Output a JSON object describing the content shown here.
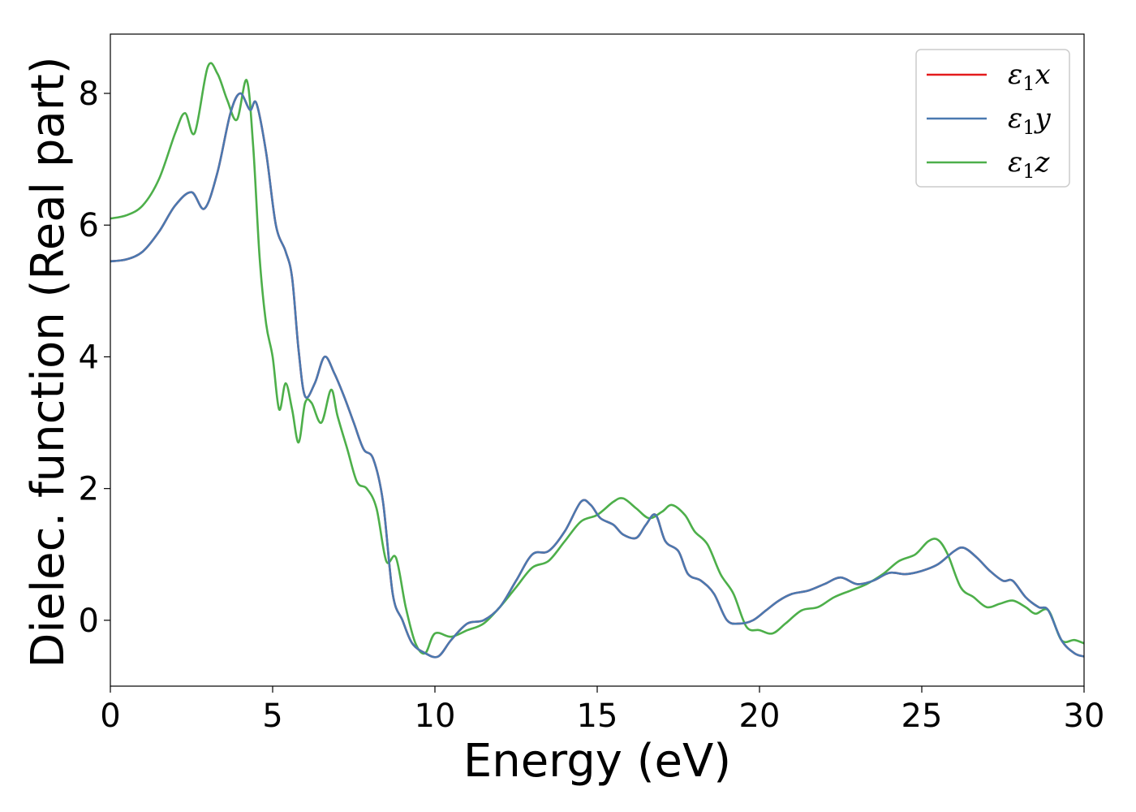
{
  "chart_data": {
    "type": "line",
    "title": "",
    "xlabel": "Energy (eV)",
    "ylabel": "Dielec. function (Real part)",
    "xlim": [
      0,
      30
    ],
    "ylim": [
      -1.0,
      8.9
    ],
    "xticks": [
      0,
      5,
      10,
      15,
      20,
      25,
      30
    ],
    "yticks": [
      0,
      2,
      4,
      6,
      8
    ],
    "grid": false,
    "legend": {
      "position": "top-right"
    },
    "series": [
      {
        "name": "ε1x",
        "color": "#e41a1c",
        "x": [
          0,
          0.5,
          1,
          1.5,
          2,
          2.5,
          2.9,
          3.3,
          3.7,
          4.0,
          4.3,
          4.5,
          4.8,
          5.1,
          5.4,
          5.6,
          5.8,
          6.0,
          6.3,
          6.6,
          6.9,
          7.2,
          7.5,
          7.8,
          8.1,
          8.4,
          8.7,
          9.0,
          9.3,
          9.7,
          10.1,
          10.5,
          11.0,
          11.5,
          12.0,
          12.5,
          13.0,
          13.5,
          14.0,
          14.5,
          14.8,
          15.1,
          15.5,
          15.8,
          16.2,
          16.5,
          16.8,
          17.1,
          17.5,
          17.8,
          18.2,
          18.6,
          19.0,
          19.4,
          19.8,
          20.2,
          20.6,
          21.0,
          21.5,
          22.0,
          22.5,
          23.0,
          23.5,
          24.0,
          24.5,
          25.0,
          25.5,
          26.0,
          26.3,
          26.7,
          27.1,
          27.5,
          27.8,
          28.2,
          28.6,
          28.9,
          29.3,
          29.7,
          30.0
        ],
        "y": [
          5.45,
          5.48,
          5.6,
          5.9,
          6.3,
          6.5,
          6.25,
          6.8,
          7.7,
          8.0,
          7.75,
          7.85,
          7.1,
          6.0,
          5.6,
          5.2,
          4.1,
          3.4,
          3.6,
          4.0,
          3.75,
          3.4,
          3.0,
          2.6,
          2.45,
          1.8,
          0.4,
          0.0,
          -0.35,
          -0.5,
          -0.55,
          -0.3,
          -0.05,
          0.0,
          0.2,
          0.6,
          1.0,
          1.05,
          1.35,
          1.8,
          1.75,
          1.55,
          1.45,
          1.3,
          1.25,
          1.45,
          1.6,
          1.2,
          1.05,
          0.7,
          0.6,
          0.4,
          0.0,
          -0.05,
          0.0,
          0.15,
          0.3,
          0.4,
          0.45,
          0.55,
          0.65,
          0.55,
          0.6,
          0.72,
          0.7,
          0.75,
          0.85,
          1.05,
          1.1,
          0.95,
          0.75,
          0.6,
          0.6,
          0.35,
          0.2,
          0.15,
          -0.3,
          -0.5,
          -0.55
        ]
      },
      {
        "name": "ε1y",
        "color": "#4a79b0",
        "x": [
          0,
          0.5,
          1,
          1.5,
          2,
          2.5,
          2.9,
          3.3,
          3.7,
          4.0,
          4.3,
          4.5,
          4.8,
          5.1,
          5.4,
          5.6,
          5.8,
          6.0,
          6.3,
          6.6,
          6.9,
          7.2,
          7.5,
          7.8,
          8.1,
          8.4,
          8.7,
          9.0,
          9.3,
          9.7,
          10.1,
          10.5,
          11.0,
          11.5,
          12.0,
          12.5,
          13.0,
          13.5,
          14.0,
          14.5,
          14.8,
          15.1,
          15.5,
          15.8,
          16.2,
          16.5,
          16.8,
          17.1,
          17.5,
          17.8,
          18.2,
          18.6,
          19.0,
          19.4,
          19.8,
          20.2,
          20.6,
          21.0,
          21.5,
          22.0,
          22.5,
          23.0,
          23.5,
          24.0,
          24.5,
          25.0,
          25.5,
          26.0,
          26.3,
          26.7,
          27.1,
          27.5,
          27.8,
          28.2,
          28.6,
          28.9,
          29.3,
          29.7,
          30.0
        ],
        "y": [
          5.45,
          5.48,
          5.6,
          5.9,
          6.3,
          6.5,
          6.25,
          6.8,
          7.7,
          8.0,
          7.75,
          7.85,
          7.1,
          6.0,
          5.6,
          5.2,
          4.1,
          3.4,
          3.6,
          4.0,
          3.75,
          3.4,
          3.0,
          2.6,
          2.45,
          1.8,
          0.4,
          0.0,
          -0.35,
          -0.5,
          -0.55,
          -0.3,
          -0.05,
          0.0,
          0.2,
          0.6,
          1.0,
          1.05,
          1.35,
          1.8,
          1.75,
          1.55,
          1.45,
          1.3,
          1.25,
          1.45,
          1.6,
          1.2,
          1.05,
          0.7,
          0.6,
          0.4,
          0.0,
          -0.05,
          0.0,
          0.15,
          0.3,
          0.4,
          0.45,
          0.55,
          0.65,
          0.55,
          0.6,
          0.72,
          0.7,
          0.75,
          0.85,
          1.05,
          1.1,
          0.95,
          0.75,
          0.6,
          0.6,
          0.35,
          0.2,
          0.15,
          -0.3,
          -0.5,
          -0.55
        ]
      },
      {
        "name": "ε1z",
        "color": "#4daf4a",
        "x": [
          0,
          0.5,
          1,
          1.5,
          2,
          2.3,
          2.6,
          3.0,
          3.3,
          3.6,
          3.9,
          4.2,
          4.4,
          4.6,
          4.8,
          5.0,
          5.2,
          5.4,
          5.6,
          5.8,
          6.0,
          6.2,
          6.5,
          6.8,
          7.0,
          7.3,
          7.6,
          7.9,
          8.2,
          8.5,
          8.8,
          9.1,
          9.4,
          9.7,
          10.0,
          10.5,
          11.0,
          11.5,
          12.0,
          12.5,
          13.0,
          13.5,
          14.0,
          14.5,
          15.0,
          15.5,
          15.8,
          16.2,
          16.6,
          17.0,
          17.3,
          17.7,
          18.0,
          18.4,
          18.8,
          19.2,
          19.6,
          20.0,
          20.4,
          20.8,
          21.3,
          21.8,
          22.3,
          22.8,
          23.3,
          23.8,
          24.3,
          24.8,
          25.2,
          25.5,
          25.8,
          26.2,
          26.6,
          27.0,
          27.4,
          27.8,
          28.2,
          28.5,
          28.9,
          29.3,
          29.7,
          30.0
        ],
        "y": [
          6.1,
          6.15,
          6.3,
          6.7,
          7.4,
          7.7,
          7.4,
          8.4,
          8.3,
          7.9,
          7.6,
          8.2,
          7.2,
          5.5,
          4.5,
          4.0,
          3.2,
          3.6,
          3.2,
          2.7,
          3.3,
          3.3,
          3.0,
          3.5,
          3.1,
          2.6,
          2.1,
          2.0,
          1.7,
          0.9,
          0.95,
          0.2,
          -0.35,
          -0.5,
          -0.2,
          -0.25,
          -0.15,
          -0.05,
          0.2,
          0.5,
          0.8,
          0.9,
          1.2,
          1.5,
          1.6,
          1.8,
          1.85,
          1.7,
          1.55,
          1.65,
          1.75,
          1.6,
          1.35,
          1.15,
          0.7,
          0.4,
          -0.1,
          -0.15,
          -0.2,
          -0.05,
          0.15,
          0.2,
          0.35,
          0.45,
          0.55,
          0.7,
          0.9,
          1.0,
          1.2,
          1.22,
          1.0,
          0.5,
          0.35,
          0.2,
          0.25,
          0.3,
          0.2,
          0.1,
          0.15,
          -0.3,
          -0.3,
          -0.35
        ]
      }
    ]
  }
}
